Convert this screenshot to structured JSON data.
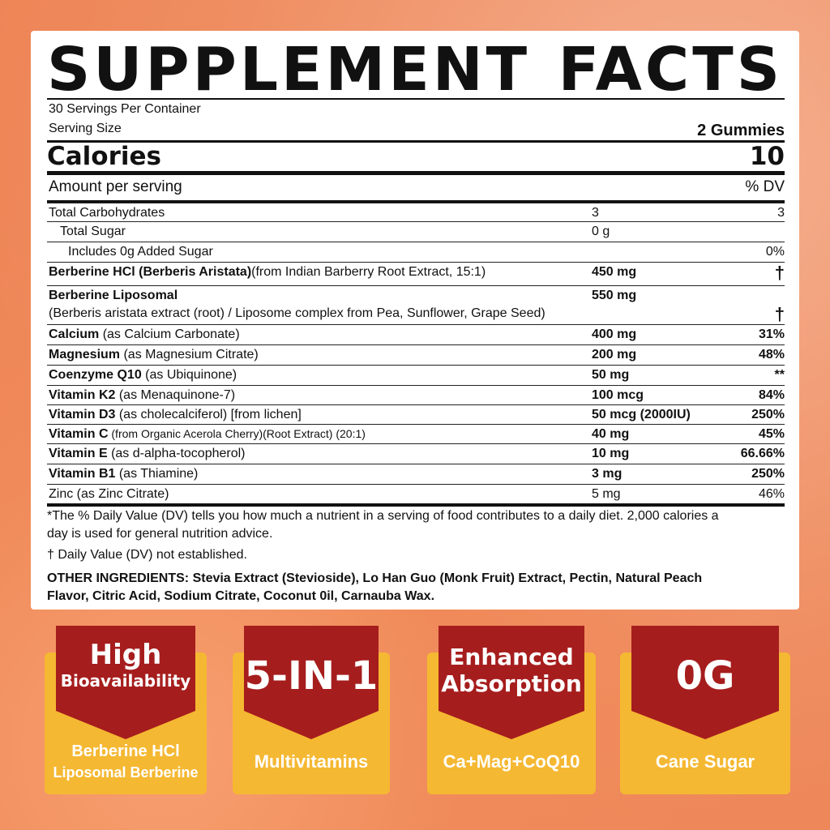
{
  "title": {
    "left": "SUPPLEMENT",
    "right": "FACTS"
  },
  "servings_per_container": "30 Servings Per Container",
  "serving_size_label": "Serving Size",
  "serving_size_value": "2 Gummies",
  "calories_label": "Calories",
  "calories_value": "10",
  "amount_per_serving": "Amount per serving",
  "dv_header": "% DV",
  "rows": [
    {
      "bold": "",
      "name": "Total Carbohydrates",
      "amount": "3",
      "dv": "3"
    },
    {
      "bold": "",
      "name": "Total Sugar",
      "amount": "0 g",
      "dv": ""
    },
    {
      "bold": "",
      "name": "Includes 0g Added Sugar",
      "amount": "",
      "dv": "0%"
    },
    {
      "bold": "Berberine HCl (Berberis Aristata)",
      "name": "(from Indian Barberry Root Extract, 15:1)",
      "amount": "450 mg",
      "dv": "†"
    },
    {
      "bold": "Berberine Liposomal",
      "name": "(Berberis aristata extract (root) / Liposome complex from Pea, Sunflower, Grape Seed)",
      "amount": "550 mg",
      "dv": "†"
    },
    {
      "bold": "Calcium",
      "name": " (as Calcium Carbonate)",
      "amount": "400 mg",
      "dv": "31%"
    },
    {
      "bold": "Magnesium",
      "name": " (as Magnesium Citrate)",
      "amount": "200 mg",
      "dv": "48%"
    },
    {
      "bold": "Coenzyme Q10",
      "name": " (as Ubiquinone)",
      "amount": "50 mg",
      "dv": "**"
    },
    {
      "bold": "Vitamin K2",
      "name": " (as Menaquinone-7)",
      "amount": "100 mcg",
      "dv": "84%"
    },
    {
      "bold": "Vitamin D3",
      "name": "  (as cholecalciferol) [from lichen]",
      "amount": "50 mcg (2000IU)",
      "dv": "250%"
    },
    {
      "bold": "Vitamin C",
      "name": " (from Organic Acerola Cherry)(Root Extract) (20:1)",
      "amount": "40 mg",
      "dv": "45%"
    },
    {
      "bold": "Vitamin E",
      "name": " (as d-alpha-tocopherol)",
      "amount": "10 mg",
      "dv": "66.66%"
    },
    {
      "bold": "Vitamin B1",
      "name": " (as Thiamine)",
      "amount": "3 mg",
      "dv": "250%"
    },
    {
      "bold": "",
      "name": "Zinc (as Zinc Citrate)",
      "amount": "5 mg",
      "dv": "46%"
    }
  ],
  "footnote1": "*The % Daily Value (DV) tells you how much a nutrient in a serving of food contributes to a daily diet. 2,000 calories a",
  "footnote1b": "day is used for general nutrition advice.",
  "footnote2": "† Daily Value (DV) not established.",
  "other_ingredients_1": "OTHER INGREDIENTS: Stevia Extract (Stevioside), Lo Han Guo (Monk Fruit) Extract, Pectin, Natural Peach",
  "other_ingredients_2": "Flavor, Citric Acid, Sodium Citrate, Coconut 0il, Carnauba Wax.",
  "badges": [
    {
      "top1": "High",
      "top2": "Bioavailability",
      "bottom1": "Berberine HCl",
      "bottom2": "Liposomal Berberine"
    },
    {
      "top1": "5-IN-1",
      "top2": "",
      "bottom1": "Multivitamins",
      "bottom2": ""
    },
    {
      "top1": "Enhanced",
      "top2": "Absorption",
      "bottom1": "Ca+Mag+CoQ10",
      "bottom2": ""
    },
    {
      "top1": "0G",
      "top2": "",
      "bottom1": "Cane Sugar",
      "bottom2": ""
    }
  ],
  "colors": {
    "badge_red": "#a61d1d",
    "badge_yellow": "#f5b832",
    "background": "#ef8e62"
  }
}
